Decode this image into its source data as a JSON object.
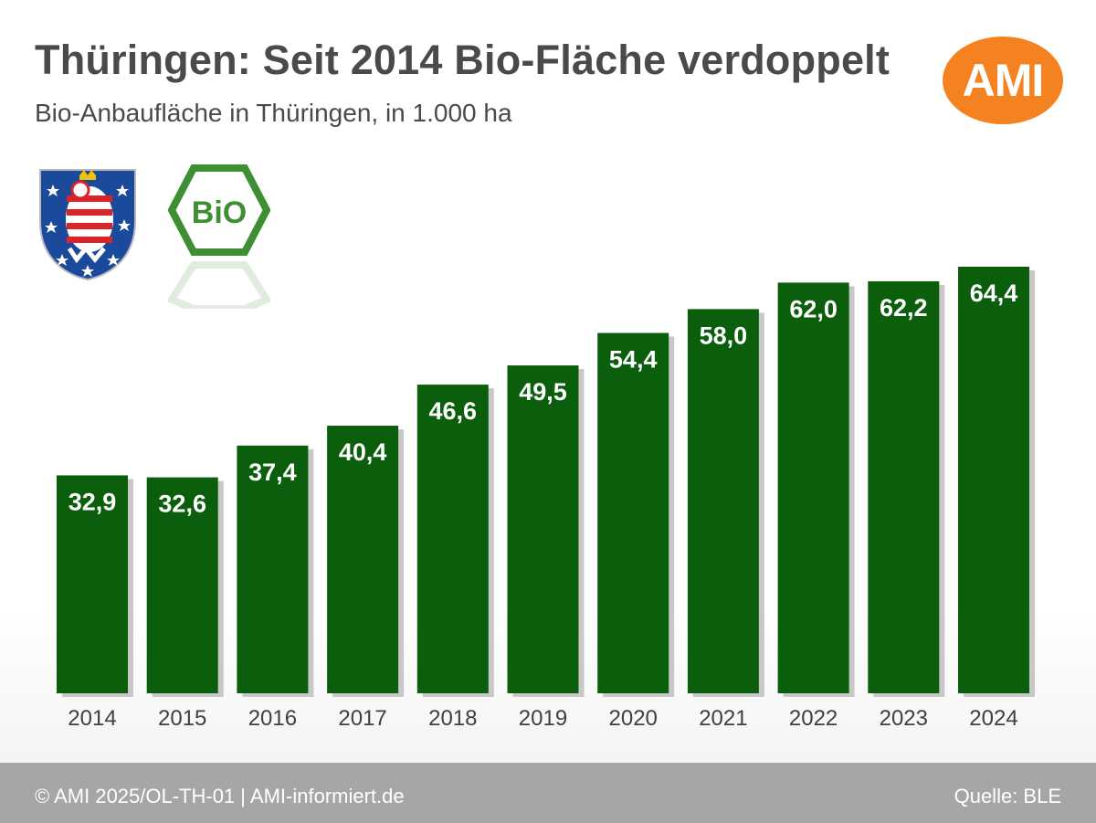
{
  "header": {
    "title": "Thüringen: Seit 2014 Bio-Fläche verdoppelt",
    "subtitle": "Bio-Anbaufläche in Thüringen, in 1.000 ha"
  },
  "logo": {
    "text": "AMI"
  },
  "bio_logo": {
    "text": "BiO"
  },
  "footer": {
    "copyright": "© AMI 2025/OL-TH-01 | AMI-informiert.de",
    "source": "Quelle: BLE"
  },
  "colors": {
    "bar": "#0b5e0b",
    "bar_shadow": "#c8c8c8",
    "bar_label": "#ffffff",
    "tick_label": "#404040",
    "title": "#4a4a4a",
    "ami_orange": "#f58220",
    "footer_bg": "#a6a6a6",
    "bio_green": "#3e8e33"
  },
  "chart_data": {
    "type": "bar",
    "categories": [
      "2014",
      "2015",
      "2016",
      "2017",
      "2018",
      "2019",
      "2020",
      "2021",
      "2022",
      "2023",
      "2024"
    ],
    "values": [
      32.9,
      32.6,
      37.4,
      40.4,
      46.6,
      49.5,
      54.4,
      58.0,
      62.0,
      62.2,
      64.4
    ],
    "value_labels": [
      "32,9",
      "32,6",
      "37,4",
      "40,4",
      "46,6",
      "49,5",
      "54,4",
      "58,0",
      "62,0",
      "62,2",
      "64,4"
    ],
    "title": "Thüringen: Seit 2014 Bio-Fläche verdoppelt",
    "subtitle": "Bio-Anbaufläche in Thüringen, in 1.000 ha",
    "xlabel": "",
    "ylabel": "",
    "ylim": [
      0,
      64.4
    ],
    "grid": false,
    "legend": "none"
  }
}
